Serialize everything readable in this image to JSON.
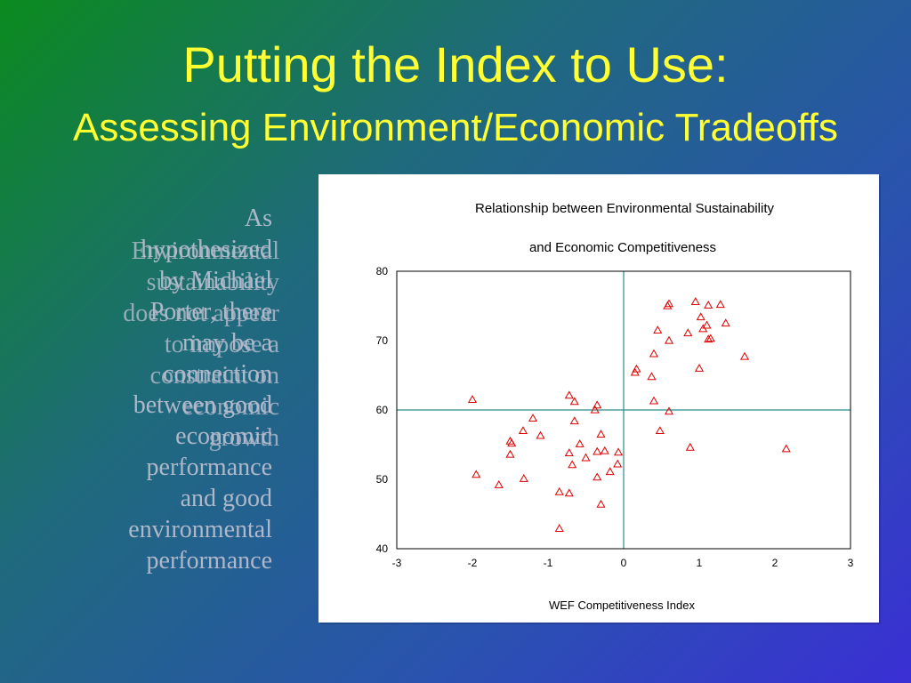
{
  "slide": {
    "title": "Putting the Index to Use:",
    "subtitle": "Assessing Environment/Economic Tradeoffs",
    "ghost_text_front": [
      "As",
      "hypothesized",
      "by Michael",
      "Porter, there",
      "may be a",
      "connection",
      "between good",
      "economic",
      "performance",
      "and good",
      "environmental",
      "performance"
    ],
    "ghost_text_back": [
      "Environmental",
      "sustainability",
      "does not appear",
      "to impose a",
      "constraint on",
      "economic",
      "growth"
    ]
  },
  "colors": {
    "title": "#ffff33",
    "ghost_text": "#b7bccd",
    "marker": "#dd0000",
    "reference_line": "#2a8c8c"
  },
  "chart_data": {
    "type": "scatter",
    "title_lines": [
      "Relationship between Environmental Sustainability",
      "and Economic Competitiveness"
    ],
    "xlabel": "WEF Competitiveness Index",
    "ylabel": "",
    "xlim": [
      -3,
      3
    ],
    "ylim": [
      40,
      80
    ],
    "x_ticks": [
      "-3",
      "-2",
      "-1",
      "0",
      "1",
      "2",
      "3"
    ],
    "y_ticks": [
      "40",
      "50",
      "60",
      "70",
      "80"
    ],
    "reference_lines": {
      "x": 0,
      "y": 60
    },
    "marker": "triangle",
    "points": [
      {
        "x": -2.0,
        "y": 61.5
      },
      {
        "x": -1.95,
        "y": 50.7
      },
      {
        "x": -1.65,
        "y": 49.2
      },
      {
        "x": -1.5,
        "y": 55.5
      },
      {
        "x": -1.48,
        "y": 55.2
      },
      {
        "x": -1.5,
        "y": 53.6
      },
      {
        "x": -1.32,
        "y": 50.1
      },
      {
        "x": -1.33,
        "y": 57.0
      },
      {
        "x": -1.2,
        "y": 58.8
      },
      {
        "x": -1.1,
        "y": 56.3
      },
      {
        "x": -0.85,
        "y": 48.2
      },
      {
        "x": -0.85,
        "y": 42.9
      },
      {
        "x": -0.72,
        "y": 62.1
      },
      {
        "x": -0.65,
        "y": 61.2
      },
      {
        "x": -0.65,
        "y": 58.4
      },
      {
        "x": -0.72,
        "y": 53.8
      },
      {
        "x": -0.68,
        "y": 52.1
      },
      {
        "x": -0.72,
        "y": 48.0
      },
      {
        "x": -0.58,
        "y": 55.1
      },
      {
        "x": -0.5,
        "y": 53.1
      },
      {
        "x": -0.38,
        "y": 60.0
      },
      {
        "x": -0.35,
        "y": 60.7
      },
      {
        "x": -0.35,
        "y": 54.0
      },
      {
        "x": -0.35,
        "y": 50.3
      },
      {
        "x": -0.3,
        "y": 56.5
      },
      {
        "x": -0.25,
        "y": 54.1
      },
      {
        "x": -0.3,
        "y": 46.4
      },
      {
        "x": -0.18,
        "y": 51.1
      },
      {
        "x": -0.08,
        "y": 52.2
      },
      {
        "x": -0.07,
        "y": 53.9
      },
      {
        "x": 0.15,
        "y": 65.4
      },
      {
        "x": 0.17,
        "y": 65.9
      },
      {
        "x": 0.37,
        "y": 64.8
      },
      {
        "x": 0.4,
        "y": 68.1
      },
      {
        "x": 0.4,
        "y": 61.3
      },
      {
        "x": 0.45,
        "y": 71.5
      },
      {
        "x": 0.48,
        "y": 57.0
      },
      {
        "x": 0.58,
        "y": 75.0
      },
      {
        "x": 0.6,
        "y": 75.3
      },
      {
        "x": 0.6,
        "y": 70.0
      },
      {
        "x": 0.6,
        "y": 59.8
      },
      {
        "x": 0.85,
        "y": 71.1
      },
      {
        "x": 0.88,
        "y": 54.6
      },
      {
        "x": 0.95,
        "y": 75.6
      },
      {
        "x": 1.02,
        "y": 73.4
      },
      {
        "x": 1.05,
        "y": 71.7
      },
      {
        "x": 1.1,
        "y": 72.2
      },
      {
        "x": 1.12,
        "y": 75.1
      },
      {
        "x": 1.12,
        "y": 70.2
      },
      {
        "x": 1.15,
        "y": 70.3
      },
      {
        "x": 1.0,
        "y": 66.0
      },
      {
        "x": 1.28,
        "y": 75.2
      },
      {
        "x": 1.35,
        "y": 72.5
      },
      {
        "x": 1.6,
        "y": 67.7
      },
      {
        "x": 2.15,
        "y": 54.4
      }
    ]
  }
}
